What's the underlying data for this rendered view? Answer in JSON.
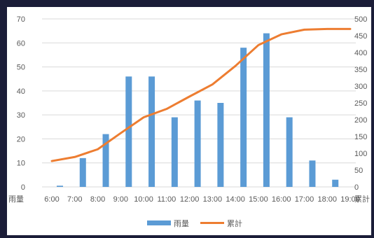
{
  "chart_data": {
    "type": "bar",
    "title": "",
    "categories": [
      "6:00",
      "7:00",
      "8:00",
      "9:00",
      "10:00",
      "11:00",
      "12:00",
      "13:00",
      "14:00",
      "15:00",
      "16:00",
      "17:00",
      "18:00",
      "19:00"
    ],
    "left_axis_label": "雨量",
    "right_axis_label": "累計",
    "ylim_left": [
      0,
      70
    ],
    "yticks_left": [
      0,
      10,
      20,
      30,
      40,
      50,
      60,
      70
    ],
    "ylim_right": [
      0,
      500
    ],
    "yticks_right": [
      0,
      50,
      100,
      150,
      200,
      250,
      300,
      350,
      400,
      450,
      500
    ],
    "grid": true,
    "legend_position": "bottom",
    "series": [
      {
        "name": "雨量",
        "kind": "bar",
        "axis": "left",
        "color": "#5b9bd5",
        "values": [
          0.5,
          12,
          22,
          46,
          46,
          29,
          36,
          35,
          58,
          64,
          29,
          11,
          3,
          0
        ]
      },
      {
        "name": "累計",
        "kind": "line",
        "axis": "right",
        "color": "#ed7d31",
        "values": [
          77,
          89,
          112,
          160,
          207,
          232,
          269,
          305,
          360,
          422,
          454,
          468,
          470,
          470
        ]
      }
    ]
  }
}
